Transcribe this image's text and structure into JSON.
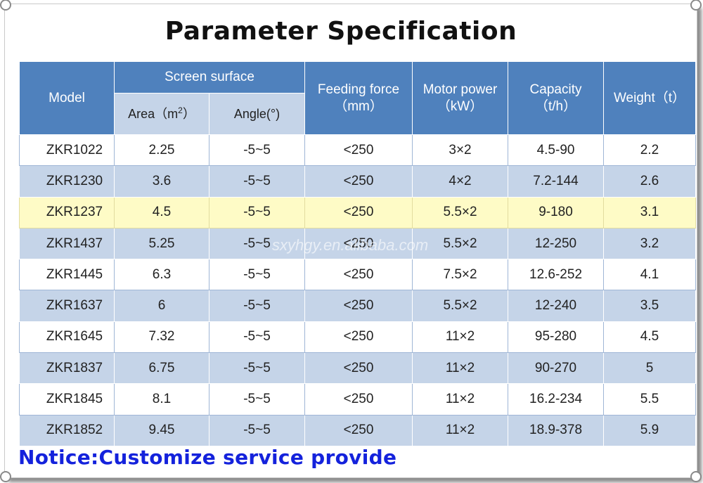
{
  "title": "Parameter Specification",
  "headers": {
    "model": "Model",
    "screen_surface": "Screen surface",
    "area_label": "Area（m",
    "area_sup": "2",
    "area_close": "）",
    "angle": "Angle(°)",
    "feeding_force": "Feeding force",
    "feeding_unit": "（mm）",
    "motor_power": "Motor power",
    "motor_unit": "（kW）",
    "capacity": "Capacity",
    "capacity_unit": "（t/h）",
    "weight": "Weight（t）"
  },
  "rows": [
    {
      "model": "ZKR1022",
      "area": "2.25",
      "angle": "-5~5",
      "feed": "<250",
      "motor": "3×2",
      "capacity": "4.5-90",
      "weight": "2.2"
    },
    {
      "model": "ZKR1230",
      "area": "3.6",
      "angle": "-5~5",
      "feed": "<250",
      "motor": "4×2",
      "capacity": "7.2-144",
      "weight": "2.6"
    },
    {
      "model": "ZKR1237",
      "area": "4.5",
      "angle": "-5~5",
      "feed": "<250",
      "motor": "5.5×2",
      "capacity": "9-180",
      "weight": "3.1"
    },
    {
      "model": "ZKR1437",
      "area": "5.25",
      "angle": "-5~5",
      "feed": "<250",
      "motor": "5.5×2",
      "capacity": "12-250",
      "weight": "3.2"
    },
    {
      "model": "ZKR1445",
      "area": "6.3",
      "angle": "-5~5",
      "feed": "<250",
      "motor": "7.5×2",
      "capacity": "12.6-252",
      "weight": "4.1"
    },
    {
      "model": "ZKR1637",
      "area": "6",
      "angle": "-5~5",
      "feed": "<250",
      "motor": "5.5×2",
      "capacity": "12-240",
      "weight": "3.5"
    },
    {
      "model": "ZKR1645",
      "area": "7.32",
      "angle": "-5~5",
      "feed": "<250",
      "motor": "11×2",
      "capacity": "95-280",
      "weight": "4.5"
    },
    {
      "model": "ZKR1837",
      "area": "6.75",
      "angle": "-5~5",
      "feed": "<250",
      "motor": "11×2",
      "capacity": "90-270",
      "weight": "5"
    },
    {
      "model": "ZKR1845",
      "area": "8.1",
      "angle": "-5~5",
      "feed": "<250",
      "motor": "11×2",
      "capacity": "16.2-234",
      "weight": "5.5"
    },
    {
      "model": "ZKR1852",
      "area": "9.45",
      "angle": "-5~5",
      "feed": "<250",
      "motor": "11×2",
      "capacity": "18.9-378",
      "weight": "5.9"
    }
  ],
  "row_styles": [
    "white",
    "blue",
    "yellow",
    "blue",
    "white",
    "blue",
    "white",
    "blue",
    "white",
    "blue"
  ],
  "watermark": "sxyhgy.en.alibaba.com",
  "notice": "Notice:Customize service provide",
  "colors": {
    "header_blue": "#4f81bd",
    "row_blue": "#c5d4e8",
    "row_yellow": "#fefbc6",
    "notice_blue": "#1422dc"
  }
}
